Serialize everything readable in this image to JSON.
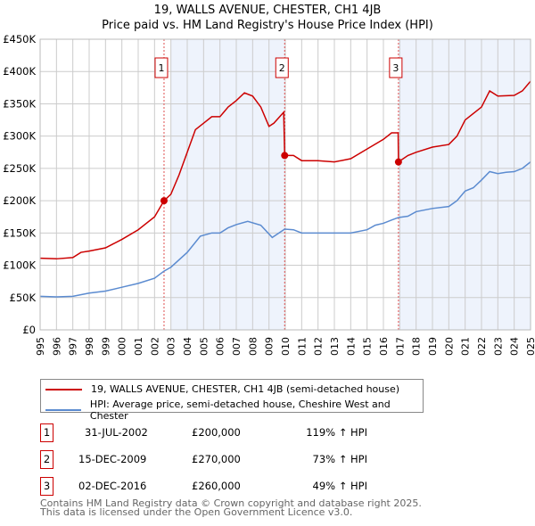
{
  "chart_data": {
    "type": "line",
    "title": "19, WALLS AVENUE, CHESTER, CH1 4JB",
    "subtitle": "Price paid vs. HM Land Registry's House Price Index (HPI)",
    "xlim": [
      1995,
      2025
    ],
    "ylim": [
      0,
      450000
    ],
    "x_ticks": [
      "1995",
      "1996",
      "1997",
      "1998",
      "1999",
      "2000",
      "2001",
      "2002",
      "2003",
      "2004",
      "2005",
      "2006",
      "2007",
      "2008",
      "2009",
      "2010",
      "2011",
      "2012",
      "2013",
      "2014",
      "2015",
      "2016",
      "2017",
      "2018",
      "2019",
      "2020",
      "2021",
      "2022",
      "2023",
      "2024",
      "2025"
    ],
    "y_ticks": [
      {
        "v": 0,
        "l": "£0"
      },
      {
        "v": 50000,
        "l": "£50K"
      },
      {
        "v": 100000,
        "l": "£100K"
      },
      {
        "v": 150000,
        "l": "£150K"
      },
      {
        "v": 200000,
        "l": "£200K"
      },
      {
        "v": 250000,
        "l": "£250K"
      },
      {
        "v": 300000,
        "l": "£300K"
      },
      {
        "v": 350000,
        "l": "£350K"
      },
      {
        "v": 400000,
        "l": "£400K"
      },
      {
        "v": 450000,
        "l": "£450K"
      }
    ],
    "grid": true,
    "series": [
      {
        "name": "19, WALLS AVENUE, CHESTER, CH1 4JB (semi-detached house)",
        "color": "#cc0000",
        "x": [
          1995,
          1996,
          1997,
          1997.5,
          1998,
          1999,
          2000,
          2001,
          2002,
          2002.58,
          2003,
          2003.5,
          2004,
          2004.5,
          2005,
          2005.5,
          2006,
          2006.5,
          2007,
          2007.5,
          2008,
          2008.5,
          2009,
          2009.3,
          2009.9,
          2009.96,
          2010.5,
          2011,
          2012,
          2013,
          2014,
          2015,
          2016,
          2016.5,
          2016.9,
          2016.92,
          2017.5,
          2018,
          2019,
          2020,
          2020.5,
          2021,
          2022,
          2022.5,
          2023,
          2024,
          2024.5,
          2025
        ],
        "y": [
          111000,
          110000,
          112000,
          120000,
          122000,
          127000,
          140000,
          155000,
          175000,
          200000,
          210000,
          240000,
          275000,
          310000,
          320000,
          330000,
          330000,
          345000,
          355000,
          367000,
          362000,
          345000,
          315000,
          320000,
          337000,
          270000,
          270000,
          262000,
          262000,
          260000,
          265000,
          280000,
          295000,
          305000,
          305000,
          260000,
          270000,
          275000,
          283000,
          287000,
          300000,
          325000,
          345000,
          370000,
          362000,
          363000,
          370000,
          385000
        ]
      },
      {
        "name": "HPI: Average price, semi-detached house, Cheshire West and Chester",
        "color": "#5b8bd0",
        "x": [
          1995,
          1996,
          1997,
          1998,
          1999,
          2000,
          2001,
          2002,
          2002.58,
          2003,
          2004,
          2004.8,
          2005.5,
          2006,
          2006.5,
          2007,
          2007.7,
          2008.5,
          2009.2,
          2009.96,
          2010.5,
          2011,
          2012,
          2013,
          2014,
          2015,
          2015.5,
          2016,
          2016.5,
          2016.92,
          2017.5,
          2018,
          2019,
          2020,
          2020.5,
          2021,
          2021.5,
          2022,
          2022.5,
          2023,
          2023.5,
          2024,
          2024.5,
          2025
        ],
        "y": [
          52000,
          51000,
          52000,
          57000,
          60000,
          66000,
          72000,
          80000,
          91000,
          97000,
          120000,
          145000,
          150000,
          150000,
          158000,
          163000,
          168000,
          162000,
          143000,
          156000,
          155000,
          150000,
          150000,
          150000,
          150000,
          155000,
          162000,
          165000,
          170000,
          174000,
          176000,
          183000,
          188000,
          191000,
          200000,
          215000,
          220000,
          232000,
          245000,
          242000,
          244000,
          245000,
          250000,
          260000
        ]
      }
    ],
    "sales": [
      {
        "id": "1",
        "x": 2002.58,
        "y": 200000,
        "date": "31-JUL-2002",
        "price": "£200,000",
        "hpi": "119% ↑ HPI"
      },
      {
        "id": "2",
        "x": 2009.96,
        "y": 270000,
        "date": "15-DEC-2009",
        "price": "£270,000",
        "hpi": "73% ↑ HPI"
      },
      {
        "id": "3",
        "x": 2016.92,
        "y": 260000,
        "date": "02-DEC-2016",
        "price": "£260,000",
        "hpi": "49% ↑ HPI"
      }
    ],
    "shaded": [
      [
        2003,
        2009.96
      ],
      [
        2016.92,
        2025
      ]
    ],
    "legend_position": "bottom"
  },
  "footer": {
    "line1": "Contains HM Land Registry data © Crown copyright and database right 2025.",
    "line2": "This data is licensed under the Open Government Licence v3.0."
  }
}
